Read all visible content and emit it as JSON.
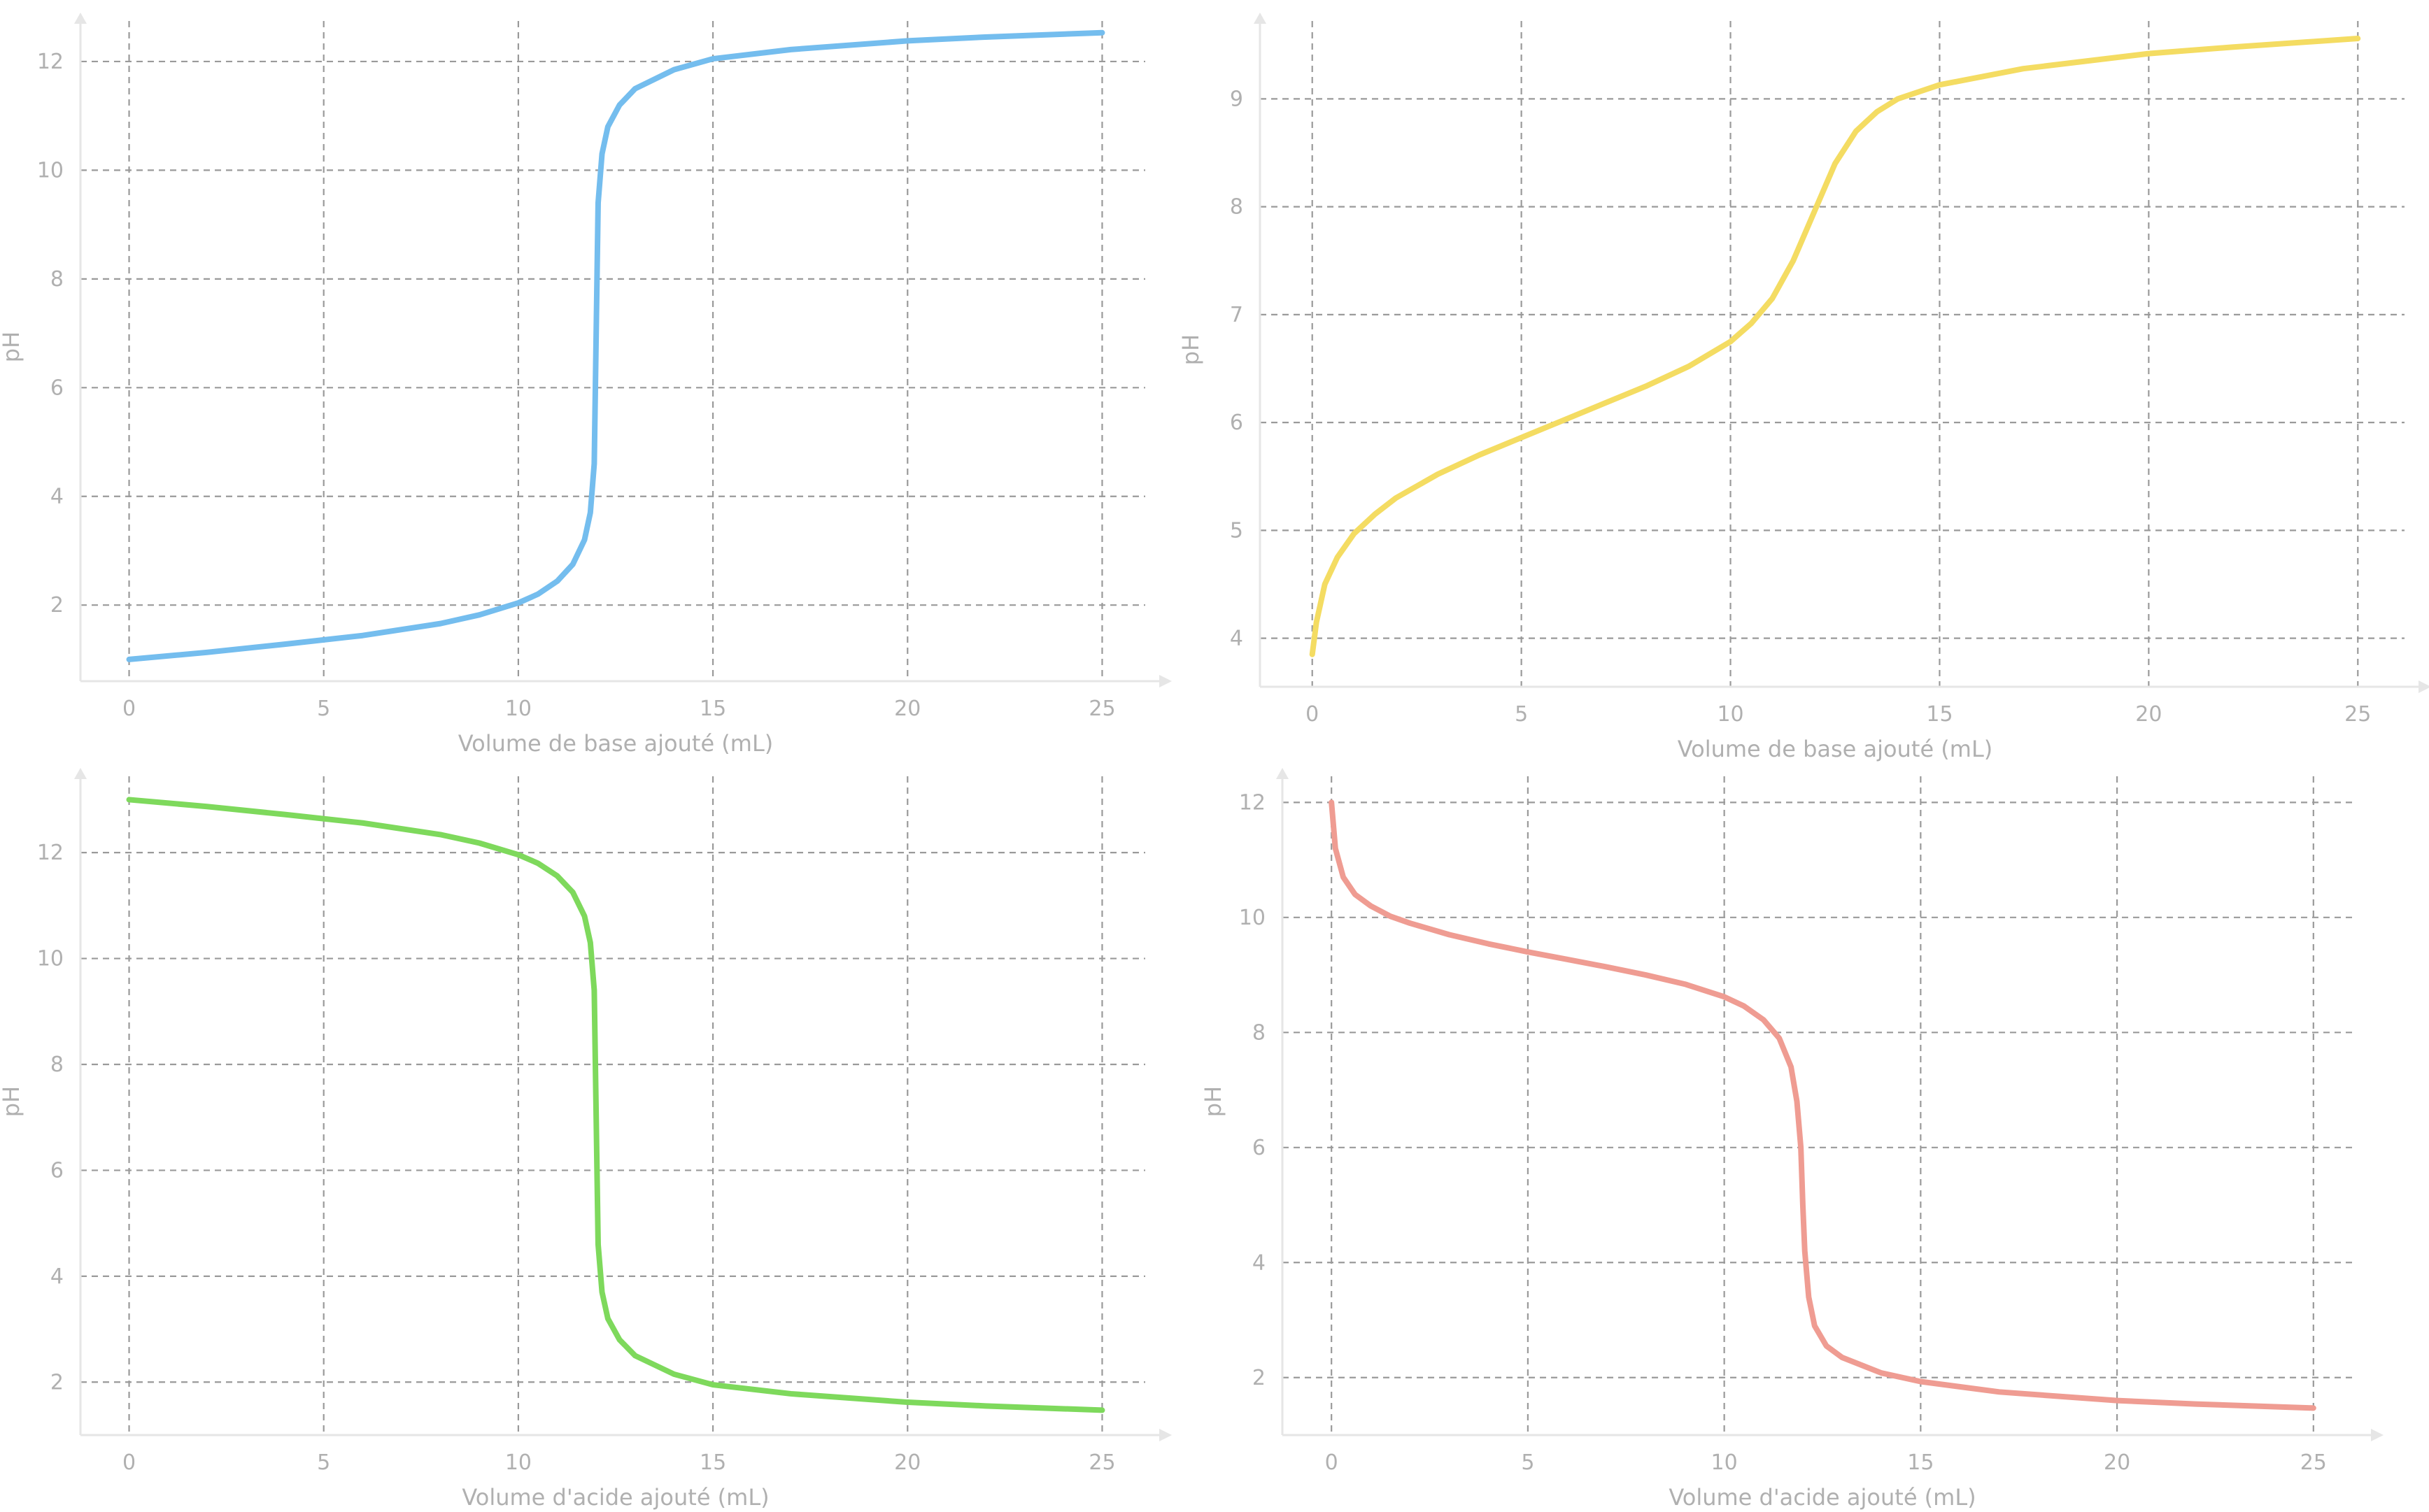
{
  "colors": {
    "grid": "#9a9a9a",
    "axis": "#e6e6e6",
    "text": "#b0b0b0",
    "strong_acid": "#74bdee",
    "weak_acid": "#f4dc62",
    "strong_base": "#7ed95c",
    "weak_base": "#ef9c92"
  },
  "chart_data": [
    {
      "type": "line",
      "name": "strong-acid-titration",
      "xlabel": "Volume de base ajouté (mL)",
      "ylabel": "pH",
      "xlim": [
        -1.25,
        26.25
      ],
      "ylim": [
        0.6,
        12.9
      ],
      "xticks": [
        0,
        5,
        10,
        15,
        20,
        25
      ],
      "yticks": [
        2,
        4,
        6,
        8,
        10,
        12
      ],
      "grid": true,
      "series": [
        {
          "name": "pH",
          "color_key": "strong_acid",
          "x": [
            0,
            2,
            4,
            6,
            8,
            9,
            10,
            10.5,
            11,
            11.4,
            11.7,
            11.85,
            11.95,
            12,
            12.05,
            12.15,
            12.3,
            12.6,
            13,
            14,
            15,
            17,
            20,
            22,
            25
          ],
          "y": [
            1.0,
            1.13,
            1.28,
            1.44,
            1.66,
            1.82,
            2.04,
            2.2,
            2.44,
            2.75,
            3.2,
            3.7,
            4.6,
            7.0,
            9.4,
            10.3,
            10.8,
            11.2,
            11.5,
            11.85,
            12.05,
            12.22,
            12.38,
            12.45,
            12.53
          ]
        }
      ]
    },
    {
      "type": "line",
      "name": "weak-acid-titration",
      "xlabel": "Volume de base ajouté (mL)",
      "ylabel": "pH",
      "xlim": [
        -1.25,
        26.25
      ],
      "ylim": [
        3.55,
        9.8
      ],
      "xticks": [
        0,
        5,
        10,
        15,
        20,
        25
      ],
      "yticks": [
        4,
        5,
        6,
        7,
        8,
        9
      ],
      "grid": true,
      "series": [
        {
          "name": "pH",
          "color_key": "weak_acid",
          "x": [
            0,
            0.1,
            0.3,
            0.6,
            1,
            1.5,
            2,
            3,
            4,
            5,
            6,
            7,
            8,
            9,
            10,
            10.5,
            11,
            11.5,
            12,
            12.5,
            13,
            13.5,
            14,
            15,
            17,
            20,
            22,
            25
          ],
          "y": [
            3.85,
            4.15,
            4.5,
            4.75,
            4.97,
            5.15,
            5.3,
            5.52,
            5.7,
            5.86,
            6.02,
            6.18,
            6.34,
            6.52,
            6.75,
            6.92,
            7.15,
            7.5,
            7.95,
            8.4,
            8.7,
            8.88,
            9.0,
            9.13,
            9.28,
            9.42,
            9.48,
            9.56
          ]
        }
      ]
    },
    {
      "type": "line",
      "name": "strong-base-titration",
      "xlabel": "Volume d'acide ajouté (mL)",
      "ylabel": "pH",
      "xlim": [
        -1.25,
        26.25
      ],
      "ylim": [
        1.0,
        13.6
      ],
      "xticks": [
        0,
        5,
        10,
        15,
        20,
        25
      ],
      "yticks": [
        2,
        4,
        6,
        8,
        10,
        12
      ],
      "grid": true,
      "series": [
        {
          "name": "pH",
          "color_key": "strong_base",
          "x": [
            0,
            2,
            4,
            6,
            8,
            9,
            10,
            10.5,
            11,
            11.4,
            11.7,
            11.85,
            11.95,
            12,
            12.05,
            12.15,
            12.3,
            12.6,
            13,
            14,
            15,
            17,
            20,
            22,
            25
          ],
          "y": [
            13.0,
            12.87,
            12.72,
            12.56,
            12.34,
            12.18,
            11.96,
            11.8,
            11.56,
            11.25,
            10.8,
            10.3,
            9.4,
            7.0,
            4.6,
            3.7,
            3.2,
            2.8,
            2.5,
            2.15,
            1.95,
            1.78,
            1.62,
            1.55,
            1.47
          ]
        }
      ]
    },
    {
      "type": "line",
      "name": "weak-base-titration",
      "xlabel": "Volume d'acide ajouté (mL)",
      "ylabel": "pH",
      "xlim": [
        -1.25,
        26.25
      ],
      "ylim": [
        1.0,
        12.6
      ],
      "xticks": [
        0,
        5,
        10,
        15,
        20,
        25
      ],
      "yticks": [
        2,
        4,
        6,
        8,
        10,
        12
      ],
      "grid": true,
      "series": [
        {
          "name": "pH",
          "color_key": "weak_base",
          "x": [
            0,
            0.1,
            0.3,
            0.6,
            1,
            1.5,
            2,
            3,
            4,
            5,
            6,
            7,
            8,
            9,
            10,
            10.5,
            11,
            11.4,
            11.7,
            11.85,
            11.95,
            12,
            12.05,
            12.15,
            12.3,
            12.6,
            13,
            14,
            15,
            17,
            20,
            22,
            25
          ],
          "y": [
            12.0,
            11.2,
            10.7,
            10.4,
            10.2,
            10.02,
            9.9,
            9.7,
            9.54,
            9.4,
            9.27,
            9.14,
            9.0,
            8.84,
            8.62,
            8.46,
            8.22,
            7.9,
            7.4,
            6.8,
            6.0,
            5.0,
            4.2,
            3.4,
            2.9,
            2.55,
            2.35,
            2.08,
            1.93,
            1.75,
            1.6,
            1.54,
            1.47
          ]
        }
      ]
    }
  ]
}
